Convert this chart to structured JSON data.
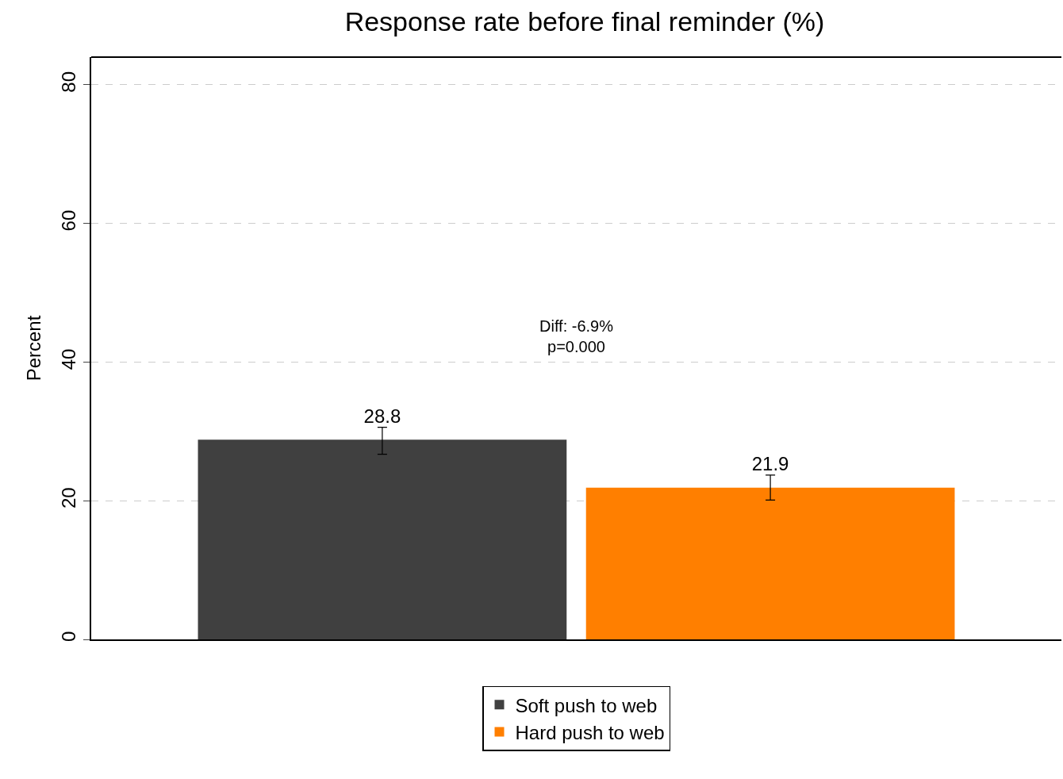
{
  "chart_data": {
    "type": "bar",
    "title": "Response rate before final reminder (%)",
    "ylabel": "Percent",
    "categories": [
      null
    ],
    "series": [
      {
        "name": "Soft push to web",
        "color": "#404040",
        "values": [
          28.8
        ],
        "errors": [
          [
            26.7,
            30.6
          ]
        ]
      },
      {
        "name": "Hard push to web",
        "color": "#ff7f00",
        "values": [
          21.9
        ],
        "errors": [
          [
            20.1,
            23.7
          ]
        ]
      }
    ],
    "ylim": [
      0,
      84
    ],
    "yticks": [
      0,
      20,
      40,
      60,
      80
    ],
    "grid": "y",
    "legend": "bottom",
    "data_labels": true,
    "annotations": [
      "Diff: -6.9%\np=0.000"
    ]
  }
}
